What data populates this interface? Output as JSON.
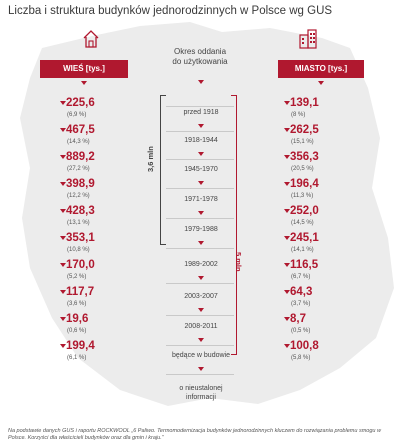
{
  "title": "Liczba i struktura budynków jednorodzinnych w Polsce wg GUS",
  "header": {
    "left_label": "WIEŚ [tys.]",
    "right_label": "MIASTO [tys.]",
    "middle_label_line1": "Okres oddania",
    "middle_label_line2": "do użytkowania"
  },
  "colors": {
    "accent": "#b0182f",
    "dark": "#444444",
    "map": "#ececec"
  },
  "icons": {
    "left": "house-icon",
    "right": "apartment-building-icon"
  },
  "periods": [
    "przed 1918",
    "1918-1944",
    "1945-1970",
    "1971-1978",
    "1979-1988",
    "1989-2002",
    "2003-2007",
    "2008-2011",
    "będące w budowie",
    "o nieustalonej",
    "informacji"
  ],
  "village": [
    {
      "value": "225,6",
      "pct": "(6,9 %)"
    },
    {
      "value": "467,5",
      "pct": "(14,3 %)"
    },
    {
      "value": "889,2",
      "pct": "(27,2 %)"
    },
    {
      "value": "398,9",
      "pct": "(12,2 %)"
    },
    {
      "value": "428,3",
      "pct": "(13,1 %)"
    },
    {
      "value": "353,1",
      "pct": "(10,8 %)"
    },
    {
      "value": "170,0",
      "pct": "(5,2 %)"
    },
    {
      "value": "117,7",
      "pct": "(3,6 %)"
    },
    {
      "value": "19,6",
      "pct": "(0,6 %)"
    },
    {
      "value": "199,4",
      "pct": "(6,1 %)"
    }
  ],
  "city": [
    {
      "value": "139,1",
      "pct": "(8 %)"
    },
    {
      "value": "262,5",
      "pct": "(15,1 %)"
    },
    {
      "value": "356,3",
      "pct": "(20,5 %)"
    },
    {
      "value": "196,4",
      "pct": "(11,3 %)"
    },
    {
      "value": "252,0",
      "pct": "(14,5 %)"
    },
    {
      "value": "245,1",
      "pct": "(14,1 %)"
    },
    {
      "value": "116,5",
      "pct": "(6,7 %)"
    },
    {
      "value": "64,3",
      "pct": "(3,7 %)"
    },
    {
      "value": "8,7",
      "pct": "(0,5 %)"
    },
    {
      "value": "100,8",
      "pct": "(5,8 %)"
    }
  ],
  "brackets": {
    "first": "3,6 mln",
    "second": "5 mln"
  },
  "footnote": "Na podstawie danych GUS i raportu ROCKWOOL „6 Paliwo. Termomodernizacja budynków jednorodzinnych kluczem do rozwiązania problemu smogu w Polsce. Korzyści dla właścicieli budynków oraz dla gmin i kraju.”"
}
